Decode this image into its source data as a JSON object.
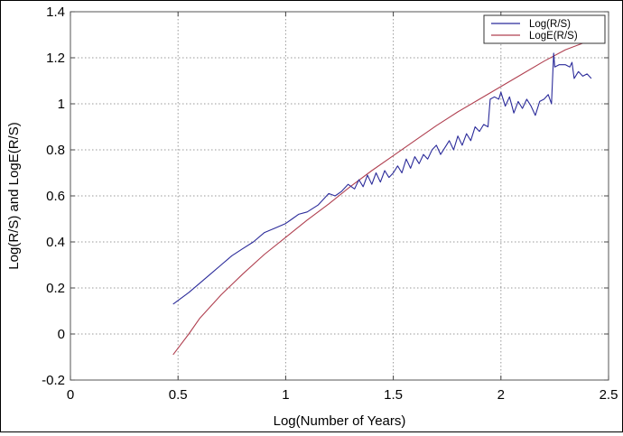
{
  "chart_data": {
    "type": "line",
    "title": "",
    "xlabel": "Log(Number of Years)",
    "ylabel": "Log(R/S) and LogE(R/S)",
    "xlim": [
      0,
      2.5
    ],
    "ylim": [
      -0.2,
      1.4
    ],
    "xticks": [
      0,
      0.5,
      1,
      1.5,
      2,
      2.5
    ],
    "xtick_labels": [
      "0",
      "0.5",
      "1",
      "1.5",
      "2",
      "2.5"
    ],
    "yticks": [
      -0.2,
      0,
      0.2,
      0.4,
      0.6,
      0.8,
      1,
      1.2,
      1.4
    ],
    "ytick_labels": [
      "-0.2",
      "0",
      "0.2",
      "0.4",
      "0.6",
      "0.8",
      "1",
      "1.2",
      "1.4"
    ],
    "grid": true,
    "legend_position": "upper right",
    "series": [
      {
        "name": "Log(R/S)",
        "color": "#2b2b9a",
        "x": [
          0.477,
          0.55,
          0.6,
          0.65,
          0.7,
          0.75,
          0.8,
          0.85,
          0.9,
          0.95,
          1.0,
          1.03,
          1.06,
          1.1,
          1.15,
          1.2,
          1.23,
          1.26,
          1.29,
          1.32,
          1.34,
          1.36,
          1.38,
          1.4,
          1.42,
          1.44,
          1.46,
          1.48,
          1.5,
          1.52,
          1.54,
          1.56,
          1.58,
          1.6,
          1.62,
          1.64,
          1.66,
          1.68,
          1.7,
          1.72,
          1.74,
          1.76,
          1.78,
          1.8,
          1.82,
          1.84,
          1.86,
          1.88,
          1.9,
          1.92,
          1.94,
          1.95,
          1.97,
          1.99,
          2.0,
          2.02,
          2.04,
          2.06,
          2.08,
          2.1,
          2.12,
          2.14,
          2.16,
          2.18,
          2.2,
          2.22,
          2.235,
          2.245,
          2.25,
          2.27,
          2.3,
          2.32,
          2.33,
          2.34,
          2.36,
          2.38,
          2.4,
          2.42
        ],
        "y": [
          0.13,
          0.18,
          0.22,
          0.26,
          0.3,
          0.34,
          0.37,
          0.4,
          0.44,
          0.46,
          0.48,
          0.5,
          0.52,
          0.53,
          0.56,
          0.61,
          0.6,
          0.62,
          0.65,
          0.63,
          0.67,
          0.64,
          0.69,
          0.65,
          0.7,
          0.66,
          0.71,
          0.68,
          0.7,
          0.73,
          0.7,
          0.76,
          0.72,
          0.77,
          0.74,
          0.78,
          0.76,
          0.8,
          0.82,
          0.78,
          0.81,
          0.84,
          0.8,
          0.86,
          0.82,
          0.87,
          0.84,
          0.9,
          0.88,
          0.91,
          0.9,
          1.02,
          1.03,
          1.02,
          1.05,
          0.99,
          1.03,
          0.96,
          1.01,
          0.98,
          1.02,
          0.99,
          0.95,
          1.01,
          1.02,
          1.04,
          1.0,
          1.22,
          1.16,
          1.17,
          1.17,
          1.16,
          1.18,
          1.11,
          1.14,
          1.12,
          1.13,
          1.11
        ]
      },
      {
        "name": "LogE(R/S)",
        "color": "#b04050",
        "x": [
          0.477,
          0.55,
          0.6,
          0.7,
          0.8,
          0.9,
          1.0,
          1.1,
          1.2,
          1.3,
          1.4,
          1.5,
          1.6,
          1.7,
          1.8,
          1.9,
          2.0,
          2.1,
          2.2,
          2.3,
          2.4
        ],
        "y": [
          -0.09,
          0.0,
          0.067,
          0.17,
          0.26,
          0.345,
          0.42,
          0.495,
          0.565,
          0.64,
          0.71,
          0.775,
          0.84,
          0.905,
          0.965,
          1.02,
          1.075,
          1.13,
          1.185,
          1.235,
          1.27
        ]
      }
    ]
  },
  "legend": {
    "items": [
      {
        "label": "Log(R/S)",
        "color": "#2b2b9a"
      },
      {
        "label": "LogE(R/S)",
        "color": "#b04050"
      }
    ]
  },
  "axes": {
    "xlabel": "Log(Number of Years)",
    "ylabel": "Log(R/S) and LogE(R/S)"
  }
}
